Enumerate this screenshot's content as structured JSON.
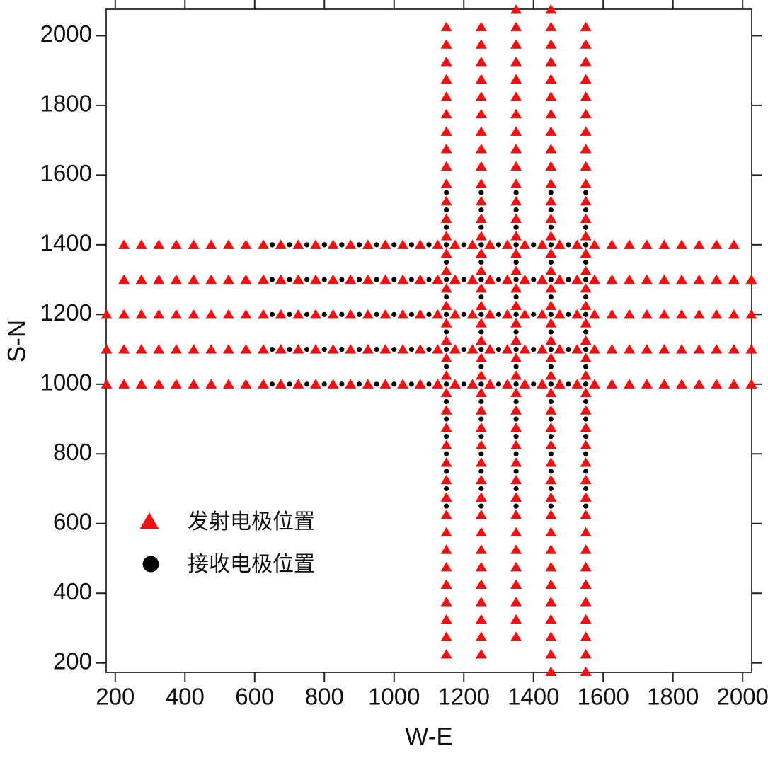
{
  "chart_data": {
    "type": "scatter",
    "title": "",
    "xlabel": "W-E",
    "ylabel": "S-N",
    "xlim": [
      174,
      2026
    ],
    "ylim": [
      173,
      2076
    ],
    "xticks": [
      200,
      400,
      600,
      800,
      1000,
      1200,
      1400,
      1600,
      1800,
      2000
    ],
    "yticks": [
      200,
      400,
      600,
      800,
      1000,
      1200,
      1400,
      1600,
      1800,
      2000
    ],
    "grid": false,
    "legend_position": "inside lower-left",
    "series": [
      {
        "name": "发射电极位置",
        "marker": "triangle",
        "color": "#ee1111",
        "point_step": 50,
        "lines_horizontal": [
          {
            "y": 1400,
            "x_start": 225,
            "x_end": 1975
          },
          {
            "y": 1300,
            "x_start": 225,
            "x_end": 2025
          },
          {
            "y": 1200,
            "x_start": 175,
            "x_end": 2025
          },
          {
            "y": 1100,
            "x_start": 175,
            "x_end": 2025
          },
          {
            "y": 1000,
            "x_start": 175,
            "x_end": 2025
          }
        ],
        "lines_vertical": [
          {
            "x": 1150,
            "y_start": 225,
            "y_end": 2025
          },
          {
            "x": 1250,
            "y_start": 225,
            "y_end": 2025
          },
          {
            "x": 1350,
            "y_start": 275,
            "y_end": 2075
          },
          {
            "x": 1450,
            "y_start": 175,
            "y_end": 2075
          },
          {
            "x": 1550,
            "y_start": 175,
            "y_end": 2025
          }
        ]
      },
      {
        "name": "接收电极位置",
        "marker": "circle",
        "color": "#000000",
        "point_step": 50,
        "lines_horizontal": [
          {
            "y": 1400,
            "x_start": 650,
            "x_end": 1550
          },
          {
            "y": 1300,
            "x_start": 650,
            "x_end": 1550
          },
          {
            "y": 1200,
            "x_start": 650,
            "x_end": 1550
          },
          {
            "y": 1100,
            "x_start": 650,
            "x_end": 1550
          },
          {
            "y": 1000,
            "x_start": 650,
            "x_end": 1550
          }
        ],
        "lines_vertical": [
          {
            "x": 1150,
            "y_start": 650,
            "y_end": 1550
          },
          {
            "x": 1250,
            "y_start": 650,
            "y_end": 1550
          },
          {
            "x": 1350,
            "y_start": 650,
            "y_end": 1550
          },
          {
            "x": 1450,
            "y_start": 650,
            "y_end": 1550
          },
          {
            "x": 1550,
            "y_start": 650,
            "y_end": 1550
          }
        ]
      }
    ],
    "legend": {
      "entries": [
        {
          "label": "发射电极位置",
          "marker": "triangle",
          "color": "#ee1111"
        },
        {
          "label": "接收电极位置",
          "marker": "circle",
          "color": "#000000"
        }
      ]
    }
  }
}
